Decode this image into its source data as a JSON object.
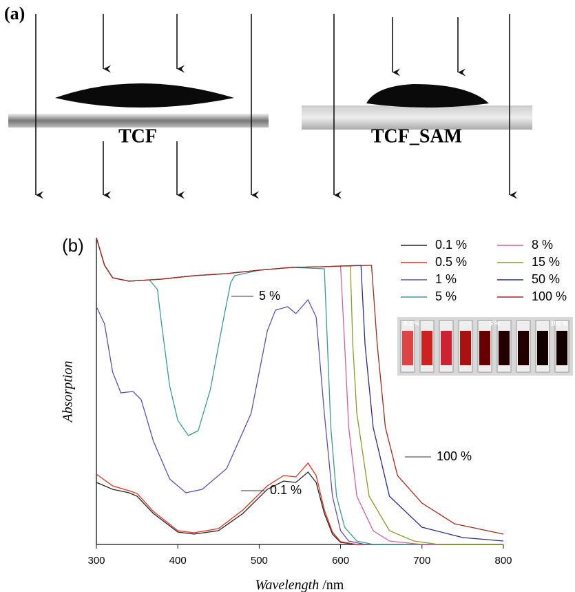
{
  "figure_a": {
    "label": "(a)",
    "captions": [
      "TCF",
      "TCF_SAM"
    ]
  },
  "chart_data": {
    "type": "line",
    "panel_label": "(b)",
    "xlabel": "Wavelength /nm",
    "ylabel": "Absorption",
    "xlim": [
      300,
      800
    ],
    "xticks": [
      300,
      400,
      500,
      600,
      700,
      800
    ],
    "ylim": [
      0,
      445
    ],
    "annotations": [
      "5 %",
      "100 %",
      "0.1 %"
    ],
    "inset_labels": [
      "0.1 %",
      "5 %",
      "100 %"
    ],
    "series": [
      {
        "name": "0.1 %",
        "color": "#222222",
        "x": [
          300,
          320,
          340,
          350,
          370,
          400,
          420,
          450,
          480,
          510,
          530,
          545,
          560,
          570,
          580,
          590,
          600,
          620,
          800
        ],
        "values": [
          90,
          80,
          75,
          70,
          45,
          18,
          15,
          20,
          45,
          80,
          92,
          90,
          105,
          90,
          45,
          15,
          3,
          0,
          0
        ]
      },
      {
        "name": "0.5 %",
        "color": "#e03020",
        "x": [
          300,
          320,
          340,
          350,
          370,
          400,
          420,
          450,
          480,
          510,
          530,
          545,
          560,
          570,
          580,
          590,
          600,
          620,
          800
        ],
        "values": [
          102,
          85,
          78,
          74,
          48,
          20,
          17,
          23,
          50,
          85,
          100,
          98,
          118,
          100,
          50,
          18,
          4,
          0,
          0
        ]
      },
      {
        "name": "1 %",
        "color": "#5a4fb0",
        "x": [
          300,
          310,
          320,
          330,
          345,
          355,
          370,
          390,
          410,
          430,
          460,
          490,
          510,
          520,
          535,
          545,
          560,
          570,
          580,
          590,
          600,
          610,
          630,
          800
        ],
        "values": [
          345,
          320,
          250,
          220,
          222,
          210,
          150,
          95,
          75,
          80,
          110,
          190,
          310,
          340,
          345,
          335,
          355,
          330,
          190,
          70,
          20,
          5,
          0,
          0
        ]
      },
      {
        "name": "5 %",
        "color": "#3a9a90",
        "x": [
          300,
          310,
          320,
          340,
          365,
          375,
          380,
          390,
          400,
          413,
          425,
          440,
          455,
          465,
          470,
          500,
          540,
          580,
          588,
          595,
          605,
          620,
          640,
          800
        ],
        "values": [
          445,
          405,
          387,
          382,
          384,
          370,
          320,
          230,
          180,
          158,
          165,
          225,
          320,
          380,
          390,
          398,
          402,
          400,
          170,
          70,
          25,
          5,
          0,
          0
        ]
      },
      {
        "name": "8 %",
        "color": "#d0609a",
        "x": [
          300,
          310,
          320,
          340,
          380,
          420,
          460,
          500,
          540,
          580,
          600,
          605,
          610,
          620,
          640,
          660,
          700,
          800
        ],
        "values": [
          445,
          405,
          387,
          382,
          385,
          390,
          393,
          398,
          402,
          403,
          404,
          290,
          170,
          70,
          20,
          5,
          0,
          0
        ]
      },
      {
        "name": "15 %",
        "color": "#8a9a2a",
        "x": [
          300,
          310,
          320,
          340,
          380,
          420,
          460,
          500,
          540,
          580,
          600,
          612,
          615,
          620,
          635,
          660,
          690,
          720,
          800
        ],
        "values": [
          445,
          405,
          387,
          382,
          385,
          390,
          393,
          398,
          402,
          403,
          404,
          404,
          290,
          190,
          70,
          20,
          5,
          0,
          0
        ]
      },
      {
        "name": "50 %",
        "color": "#2a2a8a",
        "x": [
          300,
          310,
          320,
          340,
          380,
          420,
          460,
          500,
          540,
          580,
          600,
          625,
          630,
          640,
          660,
          700,
          750,
          800
        ],
        "values": [
          445,
          405,
          387,
          382,
          385,
          390,
          393,
          398,
          402,
          403,
          404,
          405,
          290,
          170,
          70,
          25,
          10,
          5
        ]
      },
      {
        "name": "100 %",
        "color": "#a02a1a",
        "x": [
          300,
          310,
          320,
          340,
          380,
          420,
          460,
          500,
          540,
          580,
          600,
          638,
          645,
          655,
          670,
          700,
          740,
          800
        ],
        "values": [
          445,
          405,
          387,
          382,
          385,
          390,
          393,
          398,
          402,
          403,
          404,
          405,
          290,
          170,
          100,
          60,
          30,
          15
        ]
      }
    ]
  }
}
